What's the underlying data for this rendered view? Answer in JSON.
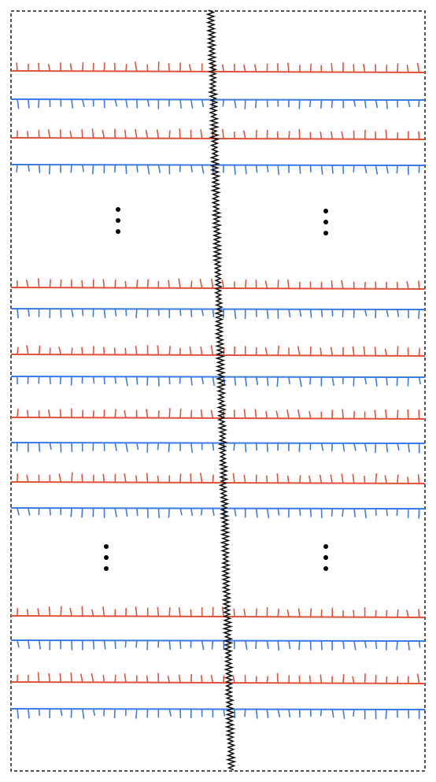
{
  "diagram": {
    "colors": {
      "frame": "#1a1a1a",
      "red_line": "#e0533a",
      "blue_line": "#3b7be8",
      "crack": "#111111",
      "ellipsis": "#000000"
    },
    "line_pairs": {
      "top_group": 2,
      "middle_group": 4,
      "bottom_group": 2
    },
    "red_line_ticks": "up",
    "blue_line_ticks": "down",
    "ellipsis_groups": 2,
    "ellipsis_dots_per_group": 3,
    "border_style": "dashed"
  }
}
